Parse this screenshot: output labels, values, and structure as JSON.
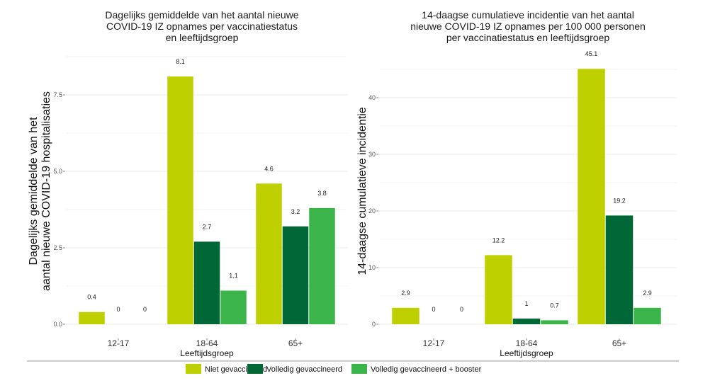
{
  "colors": {
    "niet": "#bfd000",
    "volledig": "#006837",
    "booster": "#3bb54a"
  },
  "legend": [
    {
      "label": "Niet gevaccineerd",
      "color_key": "niet"
    },
    {
      "label": "Volledig gevaccineerd",
      "color_key": "volledig"
    },
    {
      "label": "Volledig gevaccineerd + booster",
      "color_key": "booster"
    }
  ],
  "chart_data": [
    {
      "type": "bar",
      "title": [
        "Dagelijks gemiddelde van het aantal nieuwe",
        "COVID-19 IZ opnames per vaccinatiestatus",
        "en leeftijdsgroep"
      ],
      "xlabel": "Leeftijdsgroep",
      "ylabel": [
        "Dagelijks gemiddelde van het",
        "aantal nieuwe COVID-19 hospitalisaties"
      ],
      "categories": [
        "12-17",
        "18-64",
        "65+"
      ],
      "ylim": [
        0,
        8.1
      ],
      "yticks": [
        0,
        2.5,
        5,
        7.5
      ],
      "ytick_labels": [
        "0.0",
        "2.5",
        "5.0",
        "7.5"
      ],
      "grid": true,
      "series": [
        {
          "name": "Niet gevaccineerd",
          "values": [
            0.4,
            8.1,
            4.6
          ],
          "labels": [
            "0.4",
            "8.1",
            "4.6"
          ]
        },
        {
          "name": "Volledig gevaccineerd",
          "values": [
            0,
            2.7,
            3.2
          ],
          "labels": [
            "0",
            "2.7",
            "3.2"
          ]
        },
        {
          "name": "Volledig gevaccineerd + booster",
          "values": [
            0,
            1.1,
            3.8
          ],
          "labels": [
            "0",
            "1.1",
            "3.8"
          ]
        }
      ]
    },
    {
      "type": "bar",
      "title": [
        "14-daagse cumulatieve incidentie van het aantal",
        "nieuwe COVID-19 IZ opnames per 100 000 personen",
        "per vaccinatiestatus en leeftijdsgroep"
      ],
      "xlabel": "Leeftijdsgroep",
      "ylabel": [
        "14-daagse cumulatieve incidentie"
      ],
      "categories": [
        "12-17",
        "18-64",
        "65+"
      ],
      "ylim": [
        0,
        45.1
      ],
      "yticks": [
        0,
        10,
        20,
        30,
        40
      ],
      "ytick_labels": [
        "0",
        "10",
        "20",
        "30",
        "40"
      ],
      "grid": true,
      "series": [
        {
          "name": "Niet gevaccineerd",
          "values": [
            2.9,
            12.2,
            45.1
          ],
          "labels": [
            "2.9",
            "12.2",
            "45.1"
          ]
        },
        {
          "name": "Volledig gevaccineerd",
          "values": [
            0,
            1,
            19.2
          ],
          "labels": [
            "0",
            "1",
            "19.2"
          ]
        },
        {
          "name": "Volledig gevaccineerd + booster",
          "values": [
            0,
            0.7,
            2.9
          ],
          "labels": [
            "0",
            "0.7",
            "2.9"
          ]
        }
      ]
    }
  ]
}
